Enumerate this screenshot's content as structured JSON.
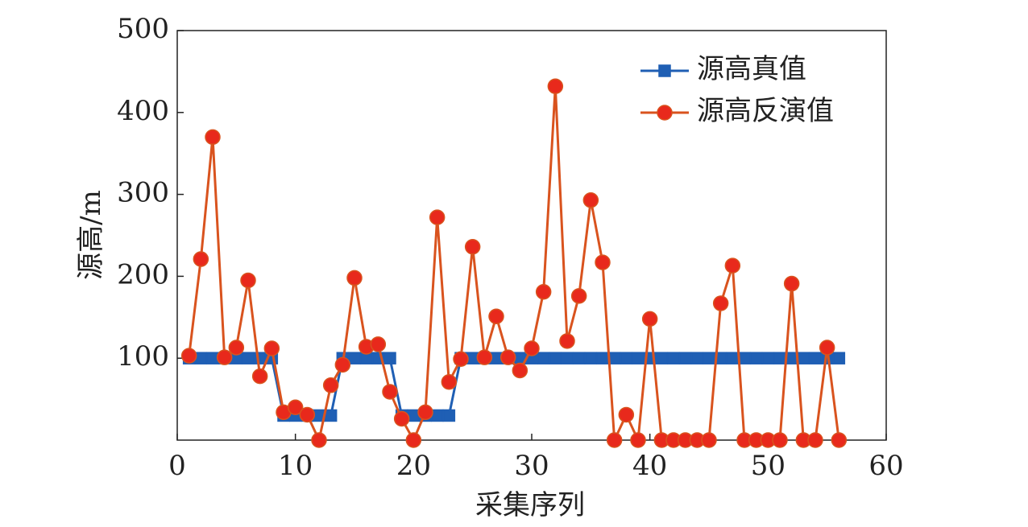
{
  "chart_data": {
    "type": "line",
    "xlabel": "采集序列",
    "ylabel": "源高/m",
    "x": [
      1,
      2,
      3,
      4,
      5,
      6,
      7,
      8,
      9,
      10,
      11,
      12,
      13,
      14,
      15,
      16,
      17,
      18,
      19,
      20,
      21,
      22,
      23,
      24,
      25,
      26,
      27,
      28,
      29,
      30,
      31,
      32,
      33,
      34,
      35,
      36,
      37,
      38,
      39,
      40,
      41,
      42,
      43,
      44,
      45,
      46,
      47,
      48,
      49,
      50,
      51,
      52,
      53,
      54,
      55,
      56
    ],
    "series": [
      {
        "name": "源高真值",
        "color": "#1f5fb4",
        "marker": "square",
        "marker_color": "#1f5fb4",
        "values": [
          100,
          100,
          100,
          100,
          100,
          100,
          100,
          100,
          30,
          30,
          30,
          30,
          30,
          100,
          100,
          100,
          100,
          100,
          30,
          30,
          30,
          30,
          30,
          100,
          100,
          100,
          100,
          100,
          100,
          100,
          100,
          100,
          100,
          100,
          100,
          100,
          100,
          100,
          100,
          100,
          100,
          100,
          100,
          100,
          100,
          100,
          100,
          100,
          100,
          100,
          100,
          100,
          100,
          100,
          100,
          100
        ]
      },
      {
        "name": "源高反演值",
        "color": "#d9531e",
        "marker": "circle",
        "marker_color": "#e8291c",
        "values": [
          103,
          221,
          370,
          101,
          113,
          195,
          78,
          112,
          34,
          40,
          31,
          0,
          67,
          92,
          198,
          114,
          117,
          59,
          26,
          0,
          34,
          272,
          71,
          99,
          236,
          101,
          151,
          101,
          85,
          112,
          181,
          432,
          121,
          176,
          293,
          217,
          0,
          31,
          0,
          148,
          0,
          0,
          0,
          0,
          0,
          167,
          213,
          0,
          0,
          0,
          0,
          191,
          0,
          0,
          113,
          0
        ]
      }
    ],
    "xlim": [
      0,
      60
    ],
    "xticks": [
      0,
      10,
      20,
      30,
      40,
      50,
      60
    ],
    "ylim": [
      0,
      500
    ],
    "yticks": [
      100,
      200,
      300,
      400,
      500
    ],
    "legend": "upper right"
  }
}
